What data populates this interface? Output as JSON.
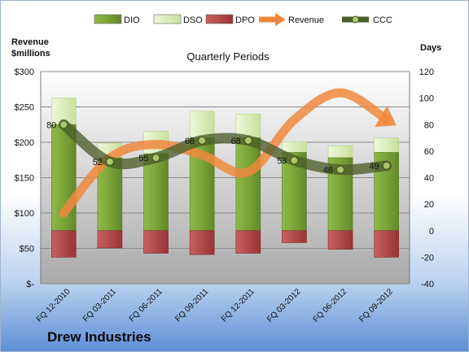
{
  "company_name": "Drew Industries",
  "chart_data": {
    "type": "bar",
    "title": "Quarterly Periods",
    "left_axis_label": [
      "Revenue",
      "$millions"
    ],
    "right_axis_label": "Days",
    "left_ticks": [
      "$300",
      "$250",
      "$200",
      "$150",
      "$100",
      "$50",
      "$-"
    ],
    "left_ylim": [
      0,
      300
    ],
    "right_ticks": [
      "120",
      "100",
      "80",
      "60",
      "40",
      "20",
      "0",
      "-20",
      "-40"
    ],
    "right_ylim": [
      -40,
      120
    ],
    "grid": true,
    "legend_position": "top",
    "categories": [
      "FQ 12-2010",
      "FQ 03-2011",
      "FQ 06-2011",
      "FQ 09-2011",
      "FQ 12-2011",
      "FQ 03-2012",
      "FQ 06-2012",
      "FQ 09-2012"
    ],
    "series": [
      {
        "name": "DIO",
        "axis": "right",
        "kind": "bar",
        "color": "#7ca63c",
        "values": [
          80,
          55,
          58,
          70,
          70,
          59,
          55,
          59
        ]
      },
      {
        "name": "DSO",
        "axis": "right",
        "kind": "bar",
        "color": "#ddeec2",
        "values": [
          20,
          11,
          17,
          20,
          18,
          8,
          9,
          11
        ]
      },
      {
        "name": "DPO",
        "axis": "right",
        "kind": "bar",
        "color": "#b84a4a",
        "values": [
          -20,
          -13,
          -17,
          -18,
          -17,
          -9,
          -14,
          -20
        ]
      },
      {
        "name": "Revenue",
        "axis": "left",
        "kind": "arrow",
        "color": "#f0883c",
        "values": [
          100,
          178,
          197,
          182,
          158,
          232,
          270,
          232
        ]
      },
      {
        "name": "CCC",
        "axis": "right",
        "kind": "line",
        "color": "#556b2f",
        "values": [
          80,
          52,
          55,
          68,
          68,
          53,
          46,
          49
        ],
        "labels": [
          "80",
          "52",
          "55",
          "68",
          "68",
          "53",
          "46",
          "49"
        ]
      }
    ]
  }
}
